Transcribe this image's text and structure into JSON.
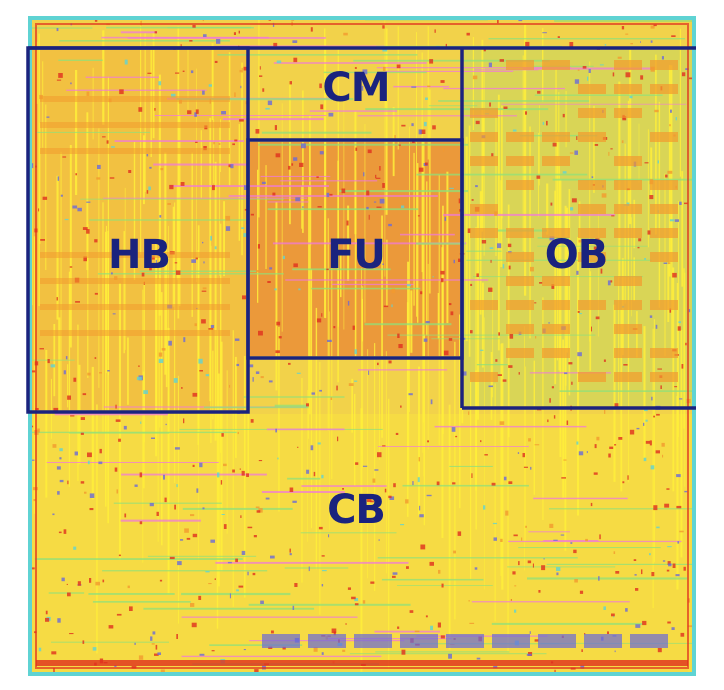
{
  "layout": {
    "title": "",
    "blocks": [
      {
        "id": "cm",
        "label": "CM"
      },
      {
        "id": "hb",
        "label": "HB"
      },
      {
        "id": "fu",
        "label": "FU"
      },
      {
        "id": "ob",
        "label": "OB"
      },
      {
        "id": "cb",
        "label": "CB"
      }
    ]
  },
  "colors": {
    "partition_lines": "#1a237e",
    "die_border": "#5fd3d3",
    "base_fill": "#f2d24a",
    "routing_yellow": "#ffef3a",
    "routing_red": "#e0301e",
    "routing_orange": "#f29a2e",
    "routing_green": "#8fe07a",
    "routing_pink": "#f07ad8",
    "routing_blue": "#6a6ad8",
    "routing_cyan": "#5fd3d3"
  }
}
